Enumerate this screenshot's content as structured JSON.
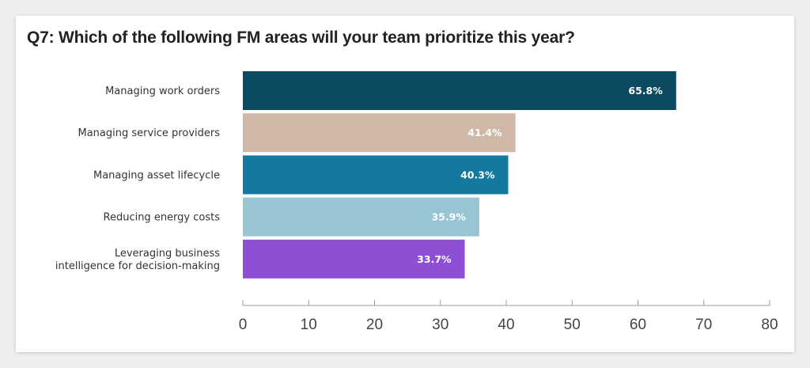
{
  "chart_data": {
    "type": "bar",
    "orientation": "horizontal",
    "title": "Q7: Which of the following FM areas will your team prioritize this year?",
    "categories": [
      "Managing work orders",
      "Managing service providers",
      "Managing asset lifecycle",
      "Reducing energy costs",
      "Leveraging business intelligence for decision-making"
    ],
    "category_lines": [
      [
        "Managing work orders"
      ],
      [
        "Managing service providers"
      ],
      [
        "Managing asset lifecycle"
      ],
      [
        "Reducing energy costs"
      ],
      [
        "Leveraging business",
        "intelligence for decision-making"
      ]
    ],
    "values": [
      65.8,
      41.4,
      40.3,
      35.9,
      33.7
    ],
    "value_labels": [
      "65.8%",
      "41.4%",
      "40.3%",
      "35.9%",
      "33.7%"
    ],
    "colors": [
      "#0b4a60",
      "#d0b8a8",
      "#13799e",
      "#97c5d3",
      "#8e4fd5"
    ],
    "xlim": [
      0,
      80
    ],
    "xticks": [
      0,
      10,
      20,
      30,
      40,
      50,
      60,
      70,
      80
    ],
    "xlabel": "",
    "ylabel": "",
    "grid": false,
    "legend": "none"
  }
}
